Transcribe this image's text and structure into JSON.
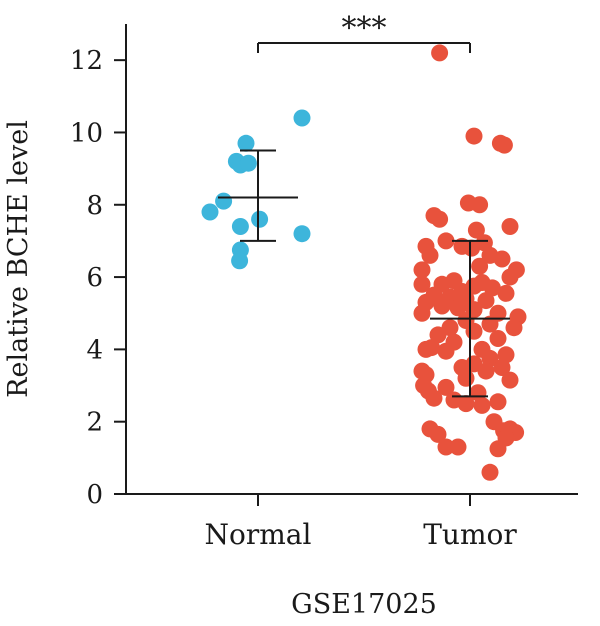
{
  "chart_data": {
    "type": "scatter",
    "xlabel": "GSE17025",
    "ylabel": "Relative BCHE level",
    "ylim": [
      0,
      13
    ],
    "yticks": [
      0,
      2,
      4,
      6,
      8,
      10,
      12
    ],
    "categories": [
      "Normal",
      "Tumor"
    ],
    "significance": "***",
    "series": [
      {
        "name": "Normal",
        "color": "#3db5db",
        "mean": 8.2,
        "sd_low": 7.0,
        "sd_high": 9.5,
        "points": [
          {
            "jitter": -0.15,
            "y": 9.7
          },
          {
            "jitter": -0.27,
            "y": 9.2
          },
          {
            "jitter": -0.22,
            "y": 9.1
          },
          {
            "jitter": -0.12,
            "y": 9.15
          },
          {
            "jitter": 0.55,
            "y": 10.4
          },
          {
            "jitter": -0.43,
            "y": 8.1
          },
          {
            "jitter": -0.6,
            "y": 7.8
          },
          {
            "jitter": 0.02,
            "y": 7.6
          },
          {
            "jitter": -0.22,
            "y": 7.4
          },
          {
            "jitter": 0.55,
            "y": 7.2
          },
          {
            "jitter": -0.22,
            "y": 6.75
          },
          {
            "jitter": -0.23,
            "y": 6.45
          }
        ]
      },
      {
        "name": "Tumor",
        "color": "#e8523c",
        "mean": 4.85,
        "sd_low": 2.7,
        "sd_high": 7.0,
        "points": [
          {
            "jitter": -0.38,
            "y": 12.2
          },
          {
            "jitter": 0.05,
            "y": 9.9
          },
          {
            "jitter": 0.38,
            "y": 9.7
          },
          {
            "jitter": 0.43,
            "y": 9.65
          },
          {
            "jitter": -0.02,
            "y": 8.05
          },
          {
            "jitter": 0.12,
            "y": 8.0
          },
          {
            "jitter": -0.45,
            "y": 7.7
          },
          {
            "jitter": -0.38,
            "y": 7.6
          },
          {
            "jitter": 0.5,
            "y": 7.4
          },
          {
            "jitter": 0.08,
            "y": 7.3
          },
          {
            "jitter": -0.3,
            "y": 7.0
          },
          {
            "jitter": 0.18,
            "y": 6.95
          },
          {
            "jitter": -0.55,
            "y": 6.85
          },
          {
            "jitter": -0.1,
            "y": 6.85
          },
          {
            "jitter": 0.02,
            "y": 6.8
          },
          {
            "jitter": -0.5,
            "y": 6.6
          },
          {
            "jitter": 0.25,
            "y": 6.6
          },
          {
            "jitter": 0.4,
            "y": 6.5
          },
          {
            "jitter": 0.58,
            "y": 6.2
          },
          {
            "jitter": -0.6,
            "y": 6.2
          },
          {
            "jitter": 0.12,
            "y": 6.3
          },
          {
            "jitter": 0.5,
            "y": 6.0
          },
          {
            "jitter": -0.2,
            "y": 5.9
          },
          {
            "jitter": 0.15,
            "y": 5.85
          },
          {
            "jitter": -0.6,
            "y": 5.8
          },
          {
            "jitter": -0.35,
            "y": 5.8
          },
          {
            "jitter": 0.05,
            "y": 5.75
          },
          {
            "jitter": 0.28,
            "y": 5.7
          },
          {
            "jitter": -0.1,
            "y": 5.6
          },
          {
            "jitter": 0.45,
            "y": 5.55
          },
          {
            "jitter": -0.45,
            "y": 5.5
          },
          {
            "jitter": -0.25,
            "y": 5.45
          },
          {
            "jitter": -0.05,
            "y": 5.4
          },
          {
            "jitter": 0.2,
            "y": 5.35
          },
          {
            "jitter": -0.55,
            "y": 5.3
          },
          {
            "jitter": -0.35,
            "y": 5.2
          },
          {
            "jitter": -0.15,
            "y": 5.15
          },
          {
            "jitter": 0.05,
            "y": 5.1
          },
          {
            "jitter": 0.35,
            "y": 5.0
          },
          {
            "jitter": -0.6,
            "y": 5.0
          },
          {
            "jitter": 0.6,
            "y": 4.9
          },
          {
            "jitter": -0.05,
            "y": 4.8
          },
          {
            "jitter": 0.25,
            "y": 4.7
          },
          {
            "jitter": 0.55,
            "y": 4.6
          },
          {
            "jitter": -0.25,
            "y": 4.6
          },
          {
            "jitter": -0.4,
            "y": 4.4
          },
          {
            "jitter": 0.05,
            "y": 4.5
          },
          {
            "jitter": 0.35,
            "y": 4.3
          },
          {
            "jitter": -0.2,
            "y": 4.2
          },
          {
            "jitter": -0.55,
            "y": 4.0
          },
          {
            "jitter": -0.48,
            "y": 4.05
          },
          {
            "jitter": 0.15,
            "y": 4.0
          },
          {
            "jitter": -0.3,
            "y": 3.95
          },
          {
            "jitter": 0.45,
            "y": 3.85
          },
          {
            "jitter": 0.25,
            "y": 3.75
          },
          {
            "jitter": 0.05,
            "y": 3.6
          },
          {
            "jitter": -0.1,
            "y": 3.5
          },
          {
            "jitter": 0.4,
            "y": 3.5
          },
          {
            "jitter": -0.6,
            "y": 3.4
          },
          {
            "jitter": 0.2,
            "y": 3.4
          },
          {
            "jitter": -0.55,
            "y": 3.3
          },
          {
            "jitter": -0.05,
            "y": 3.2
          },
          {
            "jitter": 0.5,
            "y": 3.15
          },
          {
            "jitter": -0.58,
            "y": 3.0
          },
          {
            "jitter": -0.3,
            "y": 2.95
          },
          {
            "jitter": -0.52,
            "y": 2.85
          },
          {
            "jitter": 0.1,
            "y": 2.8
          },
          {
            "jitter": -0.45,
            "y": 2.65
          },
          {
            "jitter": -0.2,
            "y": 2.6
          },
          {
            "jitter": 0.35,
            "y": 2.55
          },
          {
            "jitter": -0.05,
            "y": 2.5
          },
          {
            "jitter": 0.15,
            "y": 2.45
          },
          {
            "jitter": 0.3,
            "y": 2.0
          },
          {
            "jitter": -0.5,
            "y": 1.8
          },
          {
            "jitter": 0.5,
            "y": 1.8
          },
          {
            "jitter": 0.42,
            "y": 1.75
          },
          {
            "jitter": 0.57,
            "y": 1.7
          },
          {
            "jitter": -0.4,
            "y": 1.65
          },
          {
            "jitter": 0.45,
            "y": 1.55
          },
          {
            "jitter": -0.3,
            "y": 1.3
          },
          {
            "jitter": -0.15,
            "y": 1.3
          },
          {
            "jitter": 0.35,
            "y": 1.25
          },
          {
            "jitter": 0.25,
            "y": 0.6
          }
        ]
      }
    ]
  }
}
